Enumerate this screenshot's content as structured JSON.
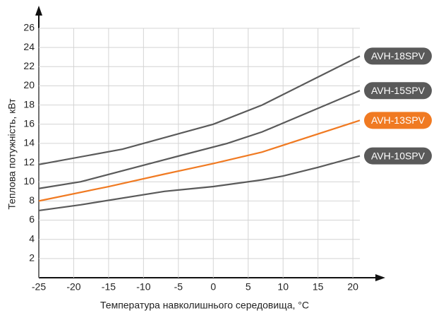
{
  "chart_data": {
    "type": "line",
    "x_label": "Температура навколишнього середовища, °С",
    "y_label": "Теплова потужність, кВт",
    "xlim": [
      -25,
      21
    ],
    "xticks": [
      -25,
      -20,
      -15,
      -10,
      -5,
      0,
      5,
      10,
      15,
      20
    ],
    "ylim": [
      0,
      26
    ],
    "yticks": [
      2,
      4,
      6,
      8,
      10,
      12,
      14,
      16,
      18,
      20,
      22,
      24,
      26
    ],
    "grid": true,
    "series": [
      {
        "name": "AVH-18SPV",
        "color": "#5a5a5a",
        "x": [
          -25,
          -13,
          0,
          7,
          21
        ],
        "values": [
          11.8,
          13.4,
          16,
          18,
          23.1
        ]
      },
      {
        "name": "AVH-15SPV",
        "color": "#5a5a5a",
        "x": [
          -25,
          -19,
          -7,
          2,
          7,
          21
        ],
        "values": [
          9.3,
          10,
          12.3,
          14,
          15.2,
          19.5
        ]
      },
      {
        "name": "AVH-13SPV",
        "color": "#f07a22",
        "x": [
          -25,
          -15,
          -7,
          0,
          7,
          21
        ],
        "values": [
          8,
          9.5,
          10.8,
          11.9,
          13.1,
          16.4
        ]
      },
      {
        "name": "AVH-10SPV",
        "color": "#5a5a5a",
        "x": [
          -25,
          -19,
          -7,
          0,
          7,
          10,
          15,
          21
        ],
        "values": [
          7,
          7.6,
          9,
          9.5,
          10.2,
          10.6,
          11.5,
          12.7
        ]
      }
    ]
  }
}
